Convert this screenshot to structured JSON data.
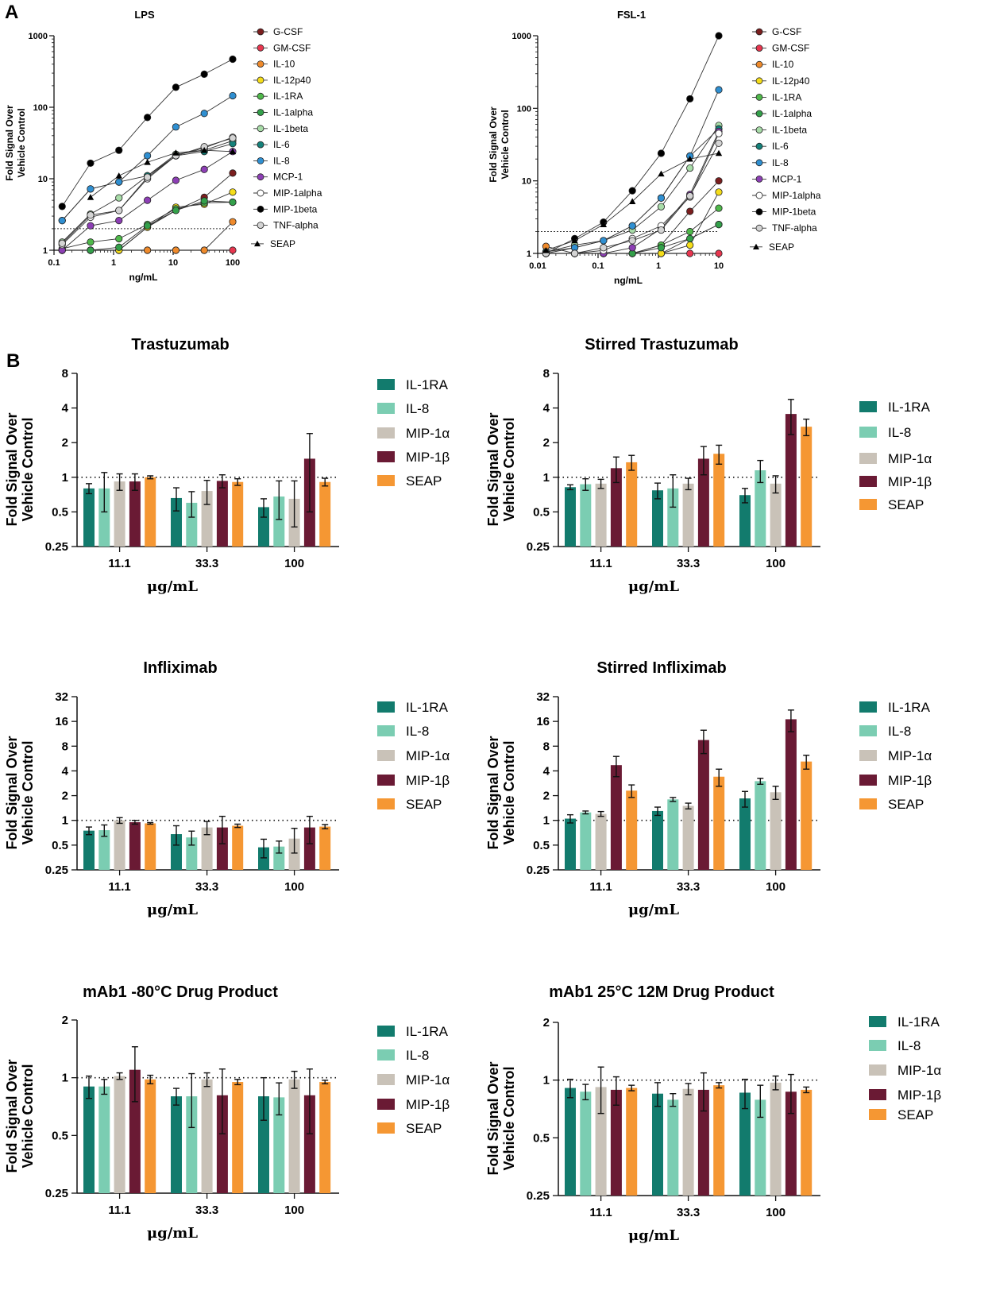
{
  "figure": {
    "panel_a_label": "A",
    "panel_b_label": "B"
  },
  "colors": {
    "G-CSF": "#7b1e1e",
    "GM-CSF": "#e8364f",
    "IL-10": "#ef8a2b",
    "IL-12p40": "#f5dd1a",
    "IL-1RA": "#4fb84a",
    "IL-1alpha": "#33a04a",
    "IL-1beta": "#a8dca8",
    "IL-6": "#14817a",
    "IL-8": "#2f8fd1",
    "MCP-1": "#8d3fb5",
    "MIP-1alpha": "#ffffff",
    "MIP-1beta": "#000000",
    "TNF-alpha": "#d4d4d4",
    "SEAP": "#000000",
    "bar_IL-1RA": "#127b6d",
    "bar_IL-8": "#7bcdb2",
    "bar_MIP-1a": "#c9c2b8",
    "bar_MIP-1b": "#6a1a34",
    "bar_SEAP": "#f59733"
  },
  "chart_data": [
    {
      "id": "lps",
      "type": "line",
      "title": "LPS",
      "xlabel": "ng/mL",
      "ylabel": [
        "Fold  Signal Over",
        "Vehicle Control"
      ],
      "xscale": "log",
      "yscale": "log",
      "xlim": [
        0.1,
        100
      ],
      "ylim": [
        1,
        1000
      ],
      "xticks": [
        0.1,
        1,
        10,
        100
      ],
      "xtick_labels": [
        "0.1",
        "1",
        "10",
        "100"
      ],
      "yticks": [
        1,
        10,
        100,
        1000
      ],
      "ytick_labels": [
        "1",
        "10",
        "100",
        "1000"
      ],
      "reference_line": 2,
      "x": [
        0.137,
        0.41,
        1.23,
        3.7,
        11.1,
        33.3,
        100
      ],
      "legend_placement": "right",
      "series": [
        {
          "name": "G-CSF",
          "marker": "circle",
          "values": [
            1,
            1,
            1,
            2.1,
            3.6,
            5.5,
            12
          ]
        },
        {
          "name": "GM-CSF",
          "marker": "circle",
          "values": [
            1,
            1,
            1,
            1,
            1,
            1,
            1
          ]
        },
        {
          "name": "IL-10",
          "marker": "circle",
          "values": [
            1,
            1,
            1,
            1,
            1,
            1,
            2.5
          ]
        },
        {
          "name": "IL-12p40",
          "marker": "circle",
          "values": [
            1,
            1,
            1,
            2.1,
            4.0,
            4.4,
            6.5
          ]
        },
        {
          "name": "IL-1RA",
          "marker": "circle",
          "values": [
            1.05,
            1.3,
            1.45,
            2.3,
            3.8,
            4.6,
            4.7
          ]
        },
        {
          "name": "IL-1alpha",
          "marker": "circle",
          "values": [
            1,
            1,
            1.1,
            2.2,
            3.6,
            4.9,
            4.7
          ]
        },
        {
          "name": "IL-1beta",
          "marker": "circle",
          "values": [
            1.3,
            3.2,
            5.4,
            11,
            22,
            25,
            34
          ]
        },
        {
          "name": "IL-6",
          "marker": "circle",
          "values": [
            2.6,
            7.2,
            9,
            11,
            21,
            24,
            31
          ]
        },
        {
          "name": "IL-8",
          "marker": "circle",
          "values": [
            2.6,
            7.2,
            9,
            21,
            53,
            82,
            145
          ]
        },
        {
          "name": "MCP-1",
          "marker": "circle",
          "values": [
            1,
            2.2,
            2.6,
            5,
            9.5,
            13.5,
            24
          ]
        },
        {
          "name": "MIP-1alpha",
          "marker": "open",
          "values": [
            1.2,
            2.9,
            3.6,
            10,
            21,
            27,
            38
          ]
        },
        {
          "name": "MIP-1beta",
          "marker": "circle",
          "values": [
            4.1,
            16.5,
            25,
            72,
            190,
            290,
            470
          ]
        },
        {
          "name": "TNF-alpha",
          "marker": "circle",
          "values": [
            1.25,
            3.1,
            3.6,
            10.5,
            21,
            28,
            37
          ]
        },
        {
          "name": "SEAP",
          "marker": "triangle",
          "values": [
            null,
            5.5,
            11,
            17,
            23,
            25,
            24
          ]
        }
      ]
    },
    {
      "id": "fsl1",
      "type": "line",
      "title": "FSL-1",
      "xlabel": "ng/mL",
      "ylabel": [
        "Fold  Signal Over",
        "Vehicle Control"
      ],
      "xscale": "log",
      "yscale": "log",
      "xlim": [
        0.01,
        10
      ],
      "ylim": [
        1,
        1000
      ],
      "xticks": [
        0.01,
        0.1,
        1,
        10
      ],
      "xtick_labels": [
        "0.01",
        "0.1",
        "1",
        "10"
      ],
      "yticks": [
        1,
        10,
        100,
        1000
      ],
      "ytick_labels": [
        "1",
        "10",
        "100",
        "1000"
      ],
      "reference_line": 2,
      "x": [
        0.0137,
        0.041,
        0.123,
        0.37,
        1.11,
        3.33,
        10
      ],
      "legend_placement": "right",
      "series": [
        {
          "name": "G-CSF",
          "marker": "circle",
          "values": [
            1,
            1,
            1,
            1,
            1.3,
            3.8,
            10
          ]
        },
        {
          "name": "GM-CSF",
          "marker": "circle",
          "values": [
            1,
            1,
            1,
            1,
            1,
            1,
            1
          ]
        },
        {
          "name": "IL-10",
          "marker": "circle",
          "values": [
            1.25,
            1,
            1,
            1,
            1,
            1.6,
            2.5
          ]
        },
        {
          "name": "IL-12p40",
          "marker": "circle",
          "values": [
            1,
            1,
            1,
            1,
            1,
            1.3,
            7
          ]
        },
        {
          "name": "IL-1RA",
          "marker": "circle",
          "values": [
            1,
            1,
            1,
            1,
            1.3,
            2,
            4.2
          ]
        },
        {
          "name": "IL-1alpha",
          "marker": "circle",
          "values": [
            1,
            1,
            1,
            1,
            1.2,
            1.6,
            2.5
          ]
        },
        {
          "name": "IL-1beta",
          "marker": "circle",
          "values": [
            1.05,
            1.3,
            1.5,
            2.1,
            4.4,
            15,
            58
          ]
        },
        {
          "name": "IL-6",
          "marker": "circle",
          "values": [
            1.05,
            1.2,
            1.5,
            2.4,
            5.8,
            22,
            52
          ]
        },
        {
          "name": "IL-8",
          "marker": "circle",
          "values": [
            1,
            1.2,
            1.5,
            2.4,
            5.8,
            22,
            180
          ]
        },
        {
          "name": "MCP-1",
          "marker": "circle",
          "values": [
            1,
            1,
            1,
            1.2,
            2.2,
            6.5,
            48
          ]
        },
        {
          "name": "MIP-1alpha",
          "marker": "open",
          "values": [
            1,
            1,
            1.1,
            1.6,
            2.4,
            6,
            45
          ]
        },
        {
          "name": "MIP-1beta",
          "marker": "circle",
          "values": [
            1,
            1.6,
            2.7,
            7.3,
            24,
            135,
            1000
          ]
        },
        {
          "name": "TNF-alpha",
          "marker": "circle",
          "values": [
            1,
            1,
            1.2,
            1.5,
            2.1,
            6.2,
            33
          ]
        },
        {
          "name": "SEAP",
          "marker": "triangle",
          "values": [
            1.1,
            1.5,
            2.5,
            5.2,
            12.5,
            20,
            24
          ]
        }
      ]
    },
    {
      "id": "trastuzumab",
      "type": "bar",
      "title": "Trastuzumab",
      "xlabel": "μg/mL",
      "ylabel": [
        "Fold  Signal Over",
        "Vehicle Control"
      ],
      "yscale": "log2",
      "ylim": [
        0.25,
        8
      ],
      "yticks": [
        0.25,
        0.5,
        1,
        2,
        4,
        8
      ],
      "ytick_labels": [
        "0.25",
        "0.5",
        "1",
        "2",
        "4",
        "8"
      ],
      "reference_line": 1,
      "categories": [
        "11.1",
        "33.3",
        "100"
      ],
      "series": [
        {
          "name": "IL-1RA",
          "values": [
            0.8,
            0.66,
            0.55
          ],
          "errors": [
            0.08,
            0.15,
            0.1
          ]
        },
        {
          "name": "IL-8",
          "values": [
            0.8,
            0.6,
            0.68
          ],
          "errors": [
            0.3,
            0.15,
            0.25
          ]
        },
        {
          "name": "MIP-1α",
          "values": [
            0.92,
            0.76,
            0.65
          ],
          "errors": [
            0.15,
            0.18,
            0.28
          ]
        },
        {
          "name": "MIP-1β",
          "values": [
            0.92,
            0.93,
            1.45
          ],
          "errors": [
            0.15,
            0.12,
            0.95
          ]
        },
        {
          "name": "SEAP",
          "values": [
            1.0,
            0.91,
            0.91
          ],
          "errors": [
            0.03,
            0.06,
            0.07
          ]
        }
      ]
    },
    {
      "id": "stirred-trastuzumab",
      "type": "bar",
      "title": "Stirred Trastuzumab",
      "xlabel": "μg/mL",
      "ylabel": [
        "Fold  Signal Over",
        "Vehicle Control"
      ],
      "yscale": "log2",
      "ylim": [
        0.25,
        8
      ],
      "yticks": [
        0.25,
        0.5,
        1,
        2,
        4,
        8
      ],
      "ytick_labels": [
        "0.25",
        "0.5",
        "1",
        "2",
        "4",
        "8"
      ],
      "reference_line": 1,
      "categories": [
        "11.1",
        "33.3",
        "100"
      ],
      "series": [
        {
          "name": "IL-1RA",
          "values": [
            0.82,
            0.77,
            0.7
          ],
          "errors": [
            0.04,
            0.12,
            0.1
          ]
        },
        {
          "name": "IL-8",
          "values": [
            0.87,
            0.8,
            1.15
          ],
          "errors": [
            0.1,
            0.25,
            0.25
          ]
        },
        {
          "name": "MIP-1α",
          "values": [
            0.88,
            0.88,
            0.88
          ],
          "errors": [
            0.08,
            0.1,
            0.15
          ]
        },
        {
          "name": "MIP-1β",
          "values": [
            1.2,
            1.45,
            3.55
          ],
          "errors": [
            0.3,
            0.4,
            1.2
          ]
        },
        {
          "name": "SEAP",
          "values": [
            1.35,
            1.6,
            2.75
          ],
          "errors": [
            0.2,
            0.3,
            0.45
          ]
        }
      ]
    },
    {
      "id": "infliximab",
      "type": "bar",
      "title": "Infliximab",
      "xlabel": "μg/mL",
      "ylabel": [
        "Fold  Signal Over",
        "Vehicle Control"
      ],
      "yscale": "log2",
      "ylim": [
        0.25,
        32
      ],
      "yticks": [
        0.25,
        0.5,
        1,
        2,
        4,
        8,
        16,
        32
      ],
      "ytick_labels": [
        "0.25",
        "0.5",
        "1",
        "2",
        "4",
        "8",
        "16",
        "32"
      ],
      "reference_line": 1,
      "categories": [
        "11.1",
        "33.3",
        "100"
      ],
      "series": [
        {
          "name": "IL-1RA",
          "values": [
            0.75,
            0.68,
            0.47
          ],
          "errors": [
            0.08,
            0.18,
            0.12
          ]
        },
        {
          "name": "IL-8",
          "values": [
            0.76,
            0.62,
            0.48
          ],
          "errors": [
            0.12,
            0.12,
            0.08
          ]
        },
        {
          "name": "MIP-1α",
          "values": [
            1.0,
            0.82,
            0.6
          ],
          "errors": [
            0.08,
            0.15,
            0.2
          ]
        },
        {
          "name": "MIP-1β",
          "values": [
            0.95,
            0.82,
            0.82
          ],
          "errors": [
            0.05,
            0.3,
            0.3
          ]
        },
        {
          "name": "SEAP",
          "values": [
            0.92,
            0.86,
            0.84
          ],
          "errors": [
            0.02,
            0.04,
            0.05
          ]
        }
      ]
    },
    {
      "id": "stirred-infliximab",
      "type": "bar",
      "title": "Stirred Infliximab",
      "xlabel": "μg/mL",
      "ylabel": [
        "Fold  Signal Over",
        "Vehicle Control"
      ],
      "yscale": "log2",
      "ylim": [
        0.25,
        32
      ],
      "yticks": [
        0.25,
        0.5,
        1,
        2,
        4,
        8,
        16,
        32
      ],
      "ytick_labels": [
        "0.25",
        "0.5",
        "1",
        "2",
        "4",
        "8",
        "16",
        "32"
      ],
      "reference_line": 1,
      "categories": [
        "11.1",
        "33.3",
        "100"
      ],
      "series": [
        {
          "name": "IL-1RA",
          "values": [
            1.05,
            1.3,
            1.85
          ],
          "errors": [
            0.12,
            0.15,
            0.4
          ]
        },
        {
          "name": "IL-8",
          "values": [
            1.25,
            1.8,
            3.0
          ],
          "errors": [
            0.05,
            0.1,
            0.25
          ]
        },
        {
          "name": "MIP-1α",
          "values": [
            1.2,
            1.5,
            2.2
          ],
          "errors": [
            0.08,
            0.12,
            0.4
          ]
        },
        {
          "name": "MIP-1β",
          "values": [
            4.7,
            9.5,
            17.0
          ],
          "errors": [
            1.3,
            3.0,
            5.0
          ]
        },
        {
          "name": "SEAP",
          "values": [
            2.3,
            3.4,
            5.2
          ],
          "errors": [
            0.4,
            0.8,
            1.0
          ]
        }
      ]
    },
    {
      "id": "mab1-minus80",
      "type": "bar",
      "title": "mAb1 -80°C Drug Product",
      "xlabel": "μg/mL",
      "ylabel": [
        "Fold  Signal Over",
        "Vehicle Control"
      ],
      "yscale": "log2",
      "ylim": [
        0.25,
        2
      ],
      "yticks": [
        0.25,
        0.5,
        1,
        2
      ],
      "ytick_labels": [
        "0.25",
        "0.5",
        "1",
        "2"
      ],
      "reference_line": 1,
      "categories": [
        "11.1",
        "33.3",
        "100"
      ],
      "series": [
        {
          "name": "IL-1RA",
          "values": [
            0.9,
            0.8,
            0.8
          ],
          "errors": [
            0.12,
            0.08,
            0.2
          ]
        },
        {
          "name": "IL-8",
          "values": [
            0.9,
            0.8,
            0.79
          ],
          "errors": [
            0.08,
            0.25,
            0.15
          ]
        },
        {
          "name": "MIP-1α",
          "values": [
            1.02,
            0.98,
            0.98
          ],
          "errors": [
            0.04,
            0.08,
            0.1
          ]
        },
        {
          "name": "MIP-1β",
          "values": [
            1.1,
            0.81,
            0.81
          ],
          "errors": [
            0.35,
            0.3,
            0.3
          ]
        },
        {
          "name": "SEAP",
          "values": [
            0.98,
            0.95,
            0.95
          ],
          "errors": [
            0.05,
            0.03,
            0.02
          ]
        }
      ]
    },
    {
      "id": "mab1-25c-12m",
      "type": "bar",
      "title": "mAb1 25°C 12M Drug Product",
      "xlabel": "μg/mL",
      "ylabel": [
        "Fold  Signal Over",
        "Vehicle Control"
      ],
      "yscale": "log2",
      "ylim": [
        0.25,
        2
      ],
      "yticks": [
        0.25,
        0.5,
        1,
        2
      ],
      "ytick_labels": [
        "0.25",
        "0.5",
        "1",
        "2"
      ],
      "reference_line": 1,
      "categories": [
        "11.1",
        "33.3",
        "100"
      ],
      "series": [
        {
          "name": "IL-1RA",
          "values": [
            0.91,
            0.85,
            0.86
          ],
          "errors": [
            0.1,
            0.12,
            0.15
          ]
        },
        {
          "name": "IL-8",
          "values": [
            0.87,
            0.79,
            0.79
          ],
          "errors": [
            0.08,
            0.06,
            0.15
          ]
        },
        {
          "name": "MIP-1α",
          "values": [
            0.92,
            0.9,
            0.97
          ],
          "errors": [
            0.25,
            0.06,
            0.08
          ]
        },
        {
          "name": "MIP-1β",
          "values": [
            0.89,
            0.89,
            0.87
          ],
          "errors": [
            0.15,
            0.2,
            0.2
          ]
        },
        {
          "name": "SEAP",
          "values": [
            0.91,
            0.94,
            0.89
          ],
          "errors": [
            0.03,
            0.03,
            0.03
          ]
        }
      ]
    }
  ]
}
